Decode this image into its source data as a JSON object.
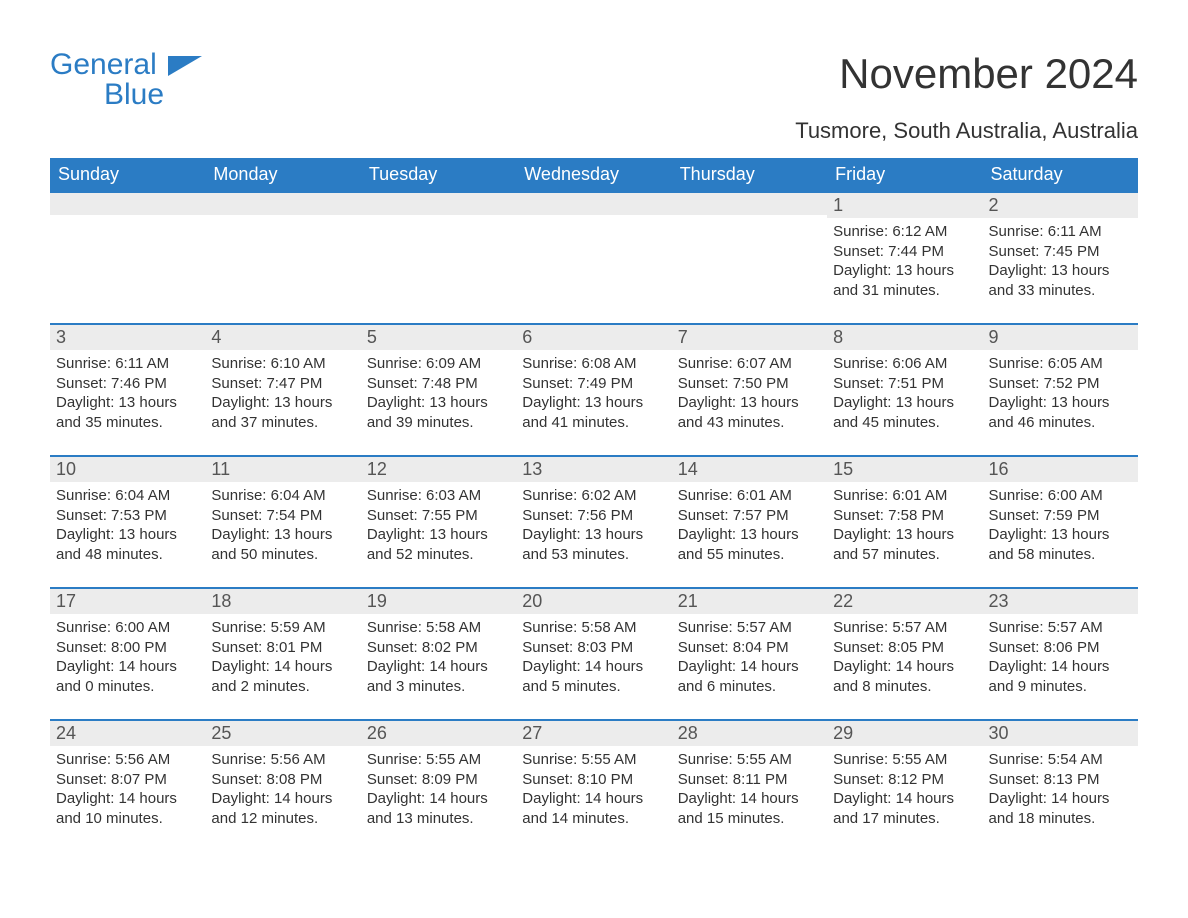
{
  "brand": {
    "word1": "General",
    "word2": "Blue",
    "flag_color": "#2b7cc4"
  },
  "title": "November 2024",
  "subtitle": "Tusmore, South Australia, Australia",
  "colors": {
    "header_bg": "#2b7cc4",
    "header_text": "#ffffff",
    "band_bg": "#ececec",
    "band_border": "#2b7cc4",
    "body_text": "#333333",
    "page_bg": "#ffffff"
  },
  "calendar": {
    "type": "table",
    "columns": [
      "Sunday",
      "Monday",
      "Tuesday",
      "Wednesday",
      "Thursday",
      "Friday",
      "Saturday"
    ],
    "leading_blank": 5,
    "days": [
      {
        "n": 1,
        "sunrise": "6:12 AM",
        "sunset": "7:44 PM",
        "daylight": "13 hours and 31 minutes."
      },
      {
        "n": 2,
        "sunrise": "6:11 AM",
        "sunset": "7:45 PM",
        "daylight": "13 hours and 33 minutes."
      },
      {
        "n": 3,
        "sunrise": "6:11 AM",
        "sunset": "7:46 PM",
        "daylight": "13 hours and 35 minutes."
      },
      {
        "n": 4,
        "sunrise": "6:10 AM",
        "sunset": "7:47 PM",
        "daylight": "13 hours and 37 minutes."
      },
      {
        "n": 5,
        "sunrise": "6:09 AM",
        "sunset": "7:48 PM",
        "daylight": "13 hours and 39 minutes."
      },
      {
        "n": 6,
        "sunrise": "6:08 AM",
        "sunset": "7:49 PM",
        "daylight": "13 hours and 41 minutes."
      },
      {
        "n": 7,
        "sunrise": "6:07 AM",
        "sunset": "7:50 PM",
        "daylight": "13 hours and 43 minutes."
      },
      {
        "n": 8,
        "sunrise": "6:06 AM",
        "sunset": "7:51 PM",
        "daylight": "13 hours and 45 minutes."
      },
      {
        "n": 9,
        "sunrise": "6:05 AM",
        "sunset": "7:52 PM",
        "daylight": "13 hours and 46 minutes."
      },
      {
        "n": 10,
        "sunrise": "6:04 AM",
        "sunset": "7:53 PM",
        "daylight": "13 hours and 48 minutes."
      },
      {
        "n": 11,
        "sunrise": "6:04 AM",
        "sunset": "7:54 PM",
        "daylight": "13 hours and 50 minutes."
      },
      {
        "n": 12,
        "sunrise": "6:03 AM",
        "sunset": "7:55 PM",
        "daylight": "13 hours and 52 minutes."
      },
      {
        "n": 13,
        "sunrise": "6:02 AM",
        "sunset": "7:56 PM",
        "daylight": "13 hours and 53 minutes."
      },
      {
        "n": 14,
        "sunrise": "6:01 AM",
        "sunset": "7:57 PM",
        "daylight": "13 hours and 55 minutes."
      },
      {
        "n": 15,
        "sunrise": "6:01 AM",
        "sunset": "7:58 PM",
        "daylight": "13 hours and 57 minutes."
      },
      {
        "n": 16,
        "sunrise": "6:00 AM",
        "sunset": "7:59 PM",
        "daylight": "13 hours and 58 minutes."
      },
      {
        "n": 17,
        "sunrise": "6:00 AM",
        "sunset": "8:00 PM",
        "daylight": "14 hours and 0 minutes."
      },
      {
        "n": 18,
        "sunrise": "5:59 AM",
        "sunset": "8:01 PM",
        "daylight": "14 hours and 2 minutes."
      },
      {
        "n": 19,
        "sunrise": "5:58 AM",
        "sunset": "8:02 PM",
        "daylight": "14 hours and 3 minutes."
      },
      {
        "n": 20,
        "sunrise": "5:58 AM",
        "sunset": "8:03 PM",
        "daylight": "14 hours and 5 minutes."
      },
      {
        "n": 21,
        "sunrise": "5:57 AM",
        "sunset": "8:04 PM",
        "daylight": "14 hours and 6 minutes."
      },
      {
        "n": 22,
        "sunrise": "5:57 AM",
        "sunset": "8:05 PM",
        "daylight": "14 hours and 8 minutes."
      },
      {
        "n": 23,
        "sunrise": "5:57 AM",
        "sunset": "8:06 PM",
        "daylight": "14 hours and 9 minutes."
      },
      {
        "n": 24,
        "sunrise": "5:56 AM",
        "sunset": "8:07 PM",
        "daylight": "14 hours and 10 minutes."
      },
      {
        "n": 25,
        "sunrise": "5:56 AM",
        "sunset": "8:08 PM",
        "daylight": "14 hours and 12 minutes."
      },
      {
        "n": 26,
        "sunrise": "5:55 AM",
        "sunset": "8:09 PM",
        "daylight": "14 hours and 13 minutes."
      },
      {
        "n": 27,
        "sunrise": "5:55 AM",
        "sunset": "8:10 PM",
        "daylight": "14 hours and 14 minutes."
      },
      {
        "n": 28,
        "sunrise": "5:55 AM",
        "sunset": "8:11 PM",
        "daylight": "14 hours and 15 minutes."
      },
      {
        "n": 29,
        "sunrise": "5:55 AM",
        "sunset": "8:12 PM",
        "daylight": "14 hours and 17 minutes."
      },
      {
        "n": 30,
        "sunrise": "5:54 AM",
        "sunset": "8:13 PM",
        "daylight": "14 hours and 18 minutes."
      }
    ],
    "labels": {
      "sunrise": "Sunrise:",
      "sunset": "Sunset:",
      "daylight": "Daylight:"
    }
  }
}
